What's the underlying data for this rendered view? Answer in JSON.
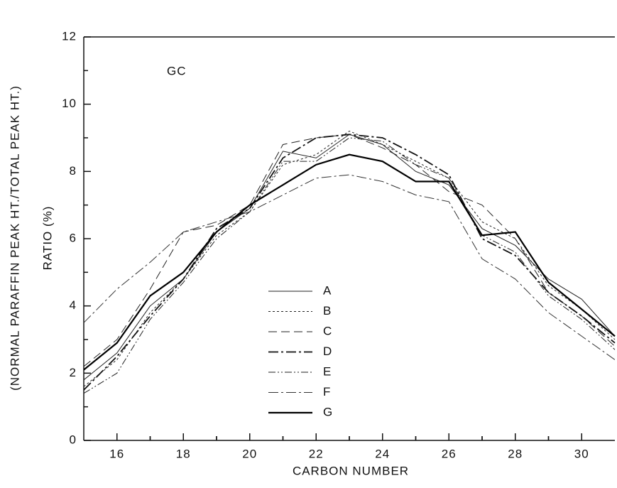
{
  "chart_data": {
    "type": "line",
    "annotation": "GC",
    "xlabel": "CARBON NUMBER",
    "ylabel": [
      "(NORMAL PARAFFIN PEAK HT./TOTAL PEAK HT.)",
      "RATIO (%)"
    ],
    "x": [
      15,
      16,
      17,
      18,
      19,
      20,
      21,
      22,
      23,
      24,
      25,
      26,
      27,
      28,
      29,
      30,
      31
    ],
    "xlim": [
      15,
      31
    ],
    "xticks": [
      16,
      18,
      20,
      22,
      24,
      26,
      28,
      30
    ],
    "ylim": [
      0,
      12
    ],
    "yticks": [
      0,
      2,
      4,
      6,
      8,
      10,
      12
    ],
    "series": [
      {
        "name": "A",
        "color": "#222",
        "width": 1,
        "dash": "none",
        "values": [
          1.8,
          2.6,
          4.0,
          4.8,
          6.2,
          6.9,
          8.6,
          8.4,
          9.1,
          8.8,
          8.0,
          7.6,
          6.3,
          5.8,
          4.8,
          4.2,
          3.1
        ]
      },
      {
        "name": "B",
        "color": "#222",
        "width": 1,
        "dash": "3 3",
        "values": [
          1.6,
          2.4,
          3.8,
          4.8,
          6.1,
          6.8,
          8.2,
          8.5,
          9.2,
          8.8,
          8.3,
          7.8,
          6.5,
          6.0,
          4.6,
          3.9,
          3.0
        ]
      },
      {
        "name": "C",
        "color": "#222",
        "width": 1,
        "dash": "12 6",
        "values": [
          2.2,
          3.0,
          4.5,
          6.2,
          6.4,
          7.0,
          8.8,
          9.0,
          9.1,
          8.7,
          8.2,
          7.4,
          7.0,
          6.0,
          4.4,
          3.7,
          2.8
        ]
      },
      {
        "name": "D",
        "color": "#111",
        "width": 1.8,
        "dash": "14 4 3 4",
        "values": [
          1.5,
          2.5,
          3.7,
          4.8,
          6.3,
          6.9,
          8.4,
          9.0,
          9.1,
          9.0,
          8.5,
          7.9,
          6.0,
          5.5,
          4.4,
          3.7,
          2.9
        ]
      },
      {
        "name": "E",
        "color": "#222",
        "width": 1,
        "dash": "10 3 2 3 2 3",
        "values": [
          1.4,
          2.0,
          3.6,
          4.7,
          6.0,
          6.8,
          8.3,
          8.3,
          9.0,
          8.9,
          8.2,
          7.8,
          6.1,
          5.6,
          4.3,
          3.6,
          2.7
        ]
      },
      {
        "name": "F",
        "color": "#333",
        "width": 1,
        "dash": "14 4 3 4",
        "values": [
          3.5,
          4.5,
          5.3,
          6.2,
          6.5,
          6.8,
          7.3,
          7.8,
          7.9,
          7.7,
          7.3,
          7.1,
          5.4,
          4.8,
          3.8,
          3.1,
          2.4
        ]
      },
      {
        "name": "G",
        "color": "#000",
        "width": 2.2,
        "dash": "none",
        "values": [
          2.1,
          2.9,
          4.3,
          5.0,
          6.2,
          7.0,
          7.6,
          8.2,
          8.5,
          8.3,
          7.7,
          7.7,
          6.1,
          6.2,
          4.7,
          3.9,
          3.1
        ]
      }
    ]
  }
}
